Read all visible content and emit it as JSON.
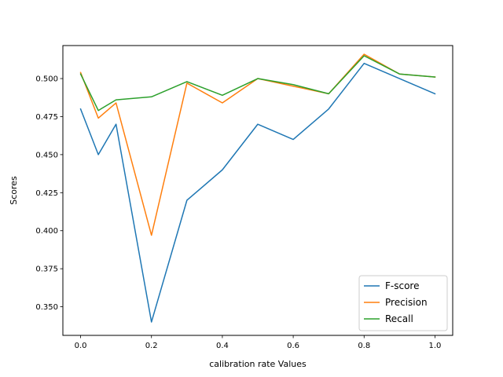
{
  "chart_data": {
    "type": "line",
    "title": "",
    "xlabel": "calibration rate Values",
    "ylabel": "Scores",
    "xlim": [
      -0.05,
      1.05
    ],
    "ylim": [
      0.3312,
      0.5217
    ],
    "x_ticks": [
      0.0,
      0.2,
      0.4,
      0.6,
      0.8,
      1.0
    ],
    "x_tick_labels": [
      "0.0",
      "0.2",
      "0.4",
      "0.6",
      "0.8",
      "1.0"
    ],
    "y_ticks": [
      0.35,
      0.375,
      0.4,
      0.425,
      0.45,
      0.475,
      0.5
    ],
    "y_tick_labels": [
      "0.350",
      "0.375",
      "0.400",
      "0.425",
      "0.450",
      "0.475",
      "0.500"
    ],
    "grid": false,
    "legend_position": "lower-right",
    "x": [
      0.0,
      0.05,
      0.1,
      0.2,
      0.3,
      0.4,
      0.5,
      0.6,
      0.7,
      0.8,
      0.9,
      1.0
    ],
    "series": [
      {
        "name": "F-score",
        "color": "#1f77b4",
        "values": [
          0.48,
          0.45,
          0.47,
          0.34,
          0.42,
          0.44,
          0.47,
          0.46,
          0.48,
          0.51,
          0.5,
          0.49
        ]
      },
      {
        "name": "Precision",
        "color": "#ff7f0e",
        "values": [
          0.504,
          0.474,
          0.484,
          0.397,
          0.497,
          0.484,
          0.5,
          0.495,
          0.49,
          0.516,
          0.503,
          0.501
        ]
      },
      {
        "name": "Recall",
        "color": "#2ca02c",
        "values": [
          0.503,
          0.479,
          0.486,
          0.488,
          0.498,
          0.489,
          0.5,
          0.496,
          0.49,
          0.515,
          0.503,
          0.501
        ]
      }
    ]
  }
}
